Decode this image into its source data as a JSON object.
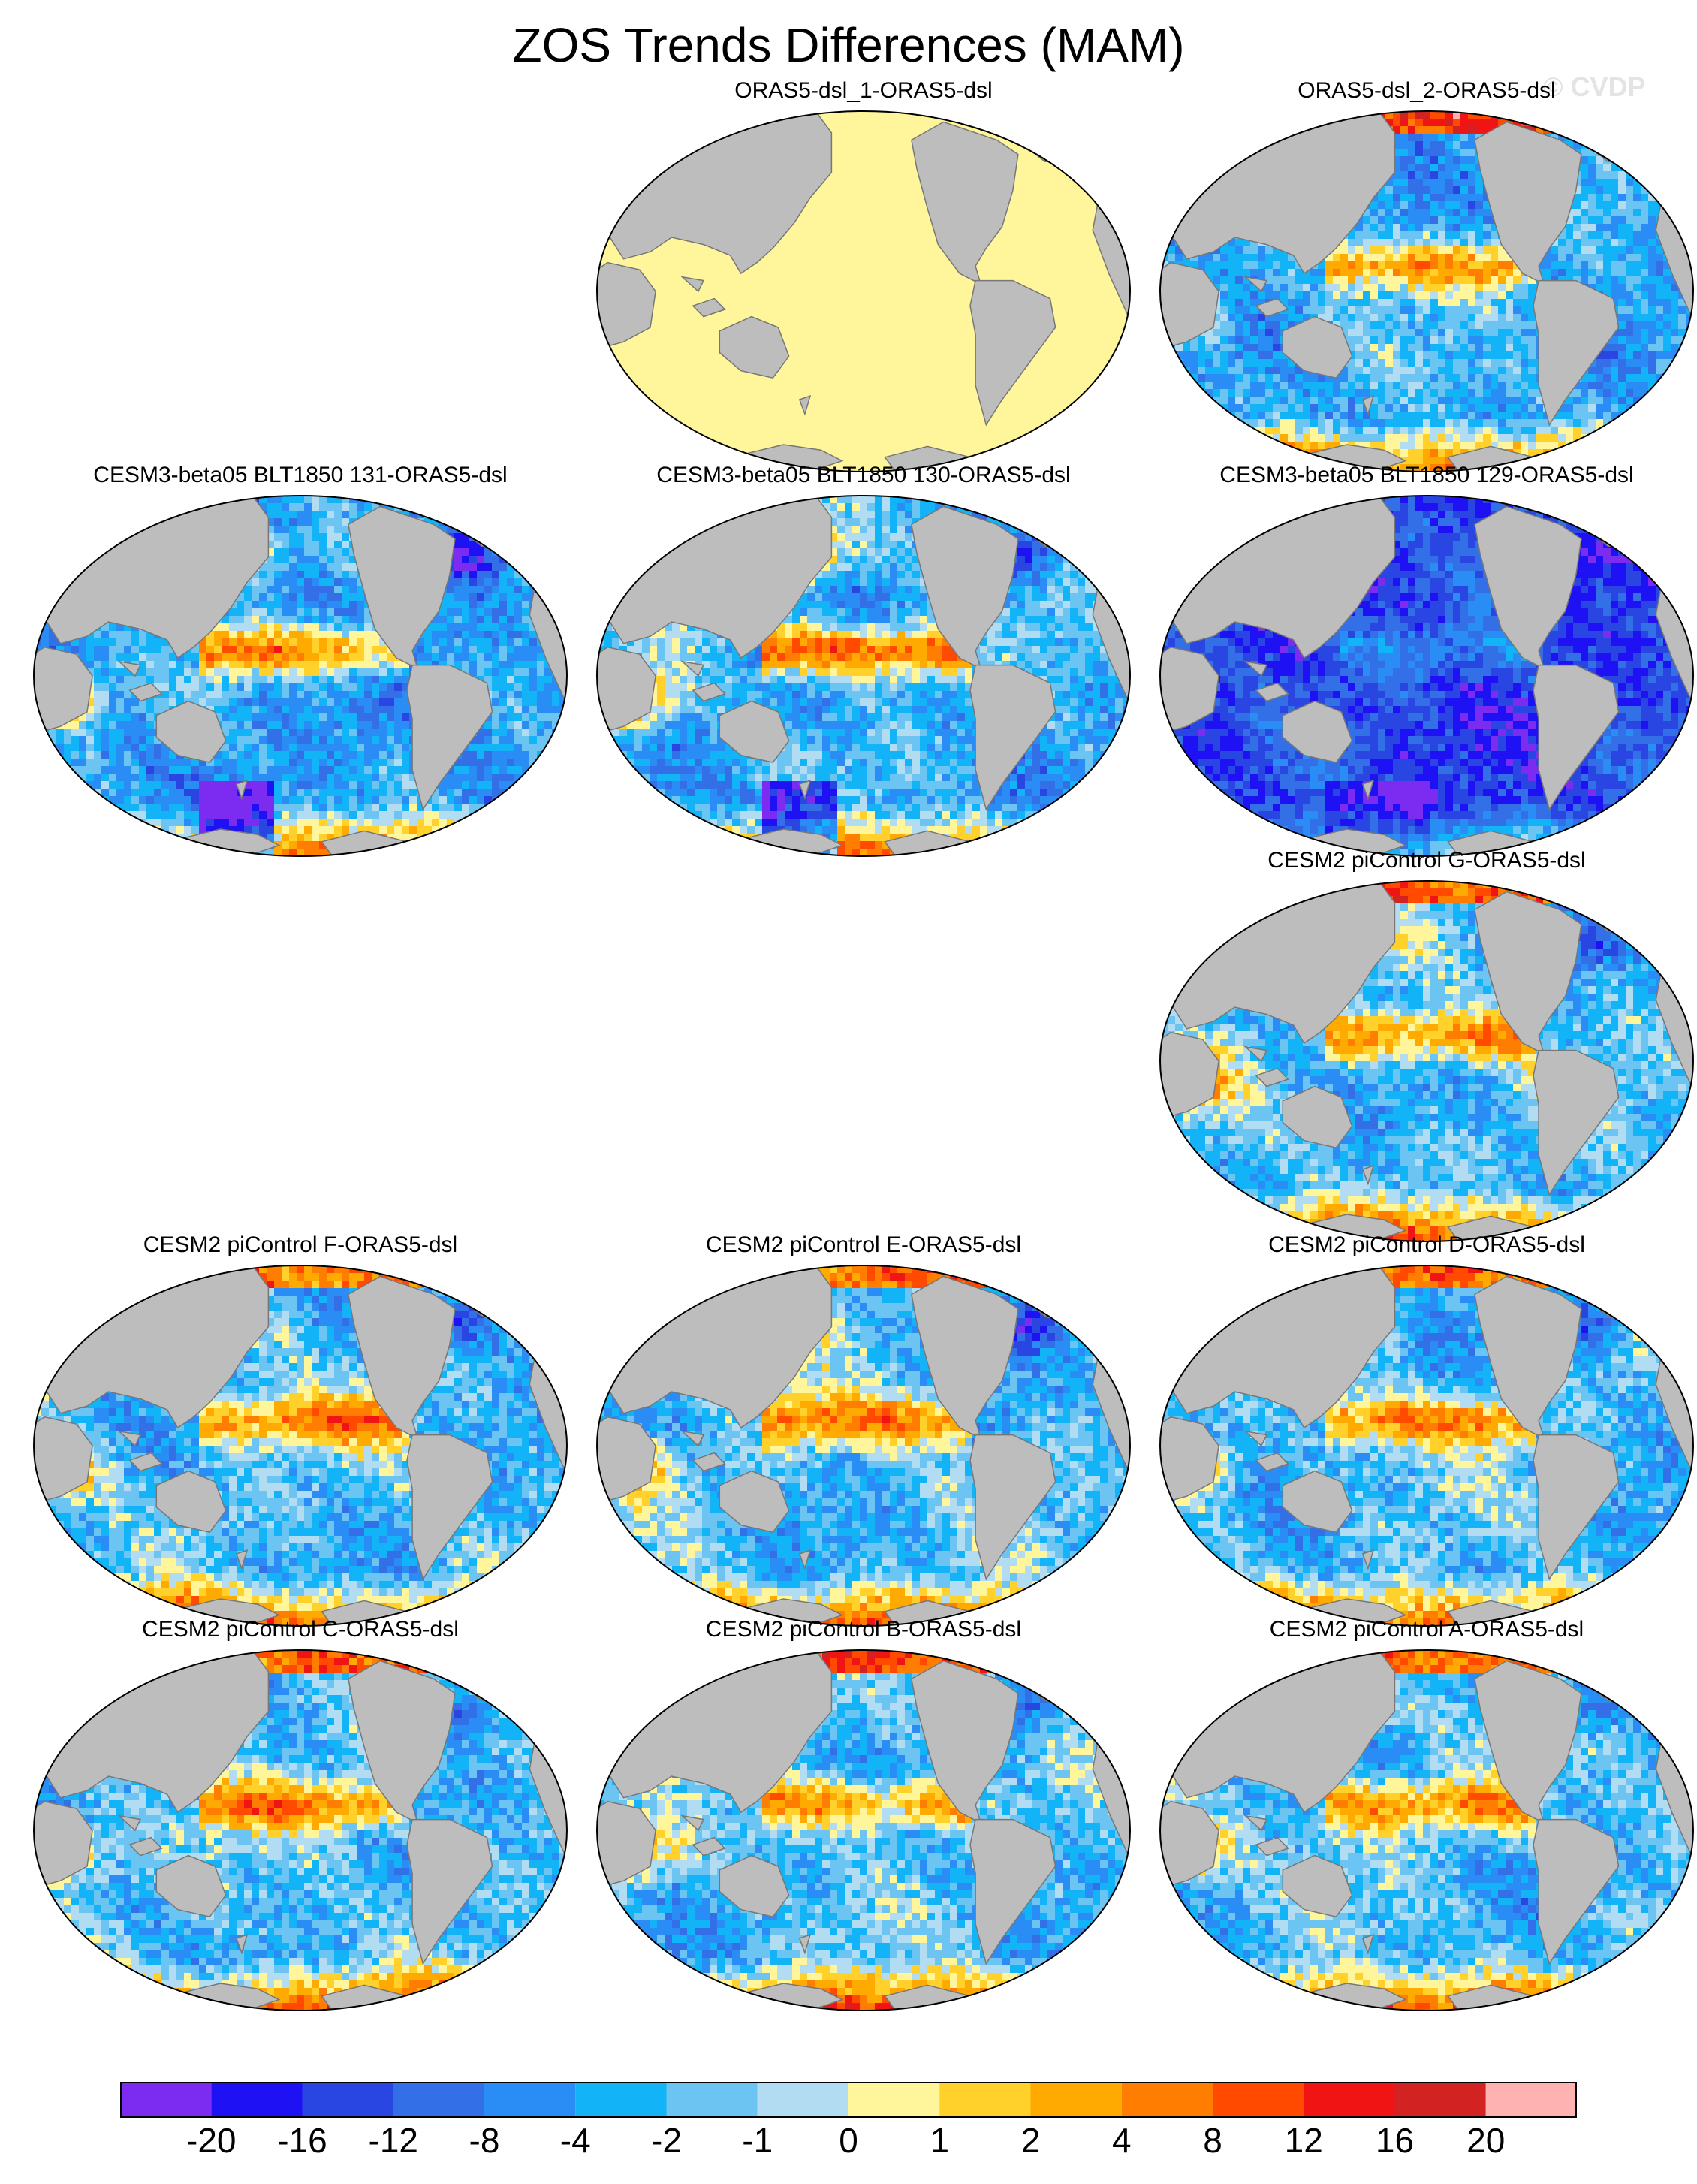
{
  "figure": {
    "title": "ZOS Trends Differences (MAM)",
    "watermark": "© CVDP"
  },
  "colors": {
    "land": "#bdbdbd",
    "coast": "#777777"
  },
  "panels": [
    {
      "title": "ORAS5-dsl_1-ORAS5-dsl",
      "row": 0,
      "col": 1,
      "pattern": "uniform"
    },
    {
      "title": "ORAS5-dsl_2-ORAS5-dsl",
      "row": 0,
      "col": 2,
      "pattern": "obs2"
    },
    {
      "title": "CESM3-beta05 BLT1850 131-ORAS5-dsl",
      "row": 1,
      "col": 0,
      "pattern": "cesm3a"
    },
    {
      "title": "CESM3-beta05 BLT1850 130-ORAS5-dsl",
      "row": 1,
      "col": 1,
      "pattern": "cesm3b"
    },
    {
      "title": "CESM3-beta05 BLT1850 129-ORAS5-dsl",
      "row": 1,
      "col": 2,
      "pattern": "cesm3c"
    },
    {
      "title": "CESM2 piControl G-ORAS5-dsl",
      "row": 2,
      "col": 2,
      "pattern": "cesm2"
    },
    {
      "title": "CESM2 piControl F-ORAS5-dsl",
      "row": 3,
      "col": 0,
      "pattern": "cesm2"
    },
    {
      "title": "CESM2 piControl E-ORAS5-dsl",
      "row": 3,
      "col": 1,
      "pattern": "cesm2"
    },
    {
      "title": "CESM2 piControl D-ORAS5-dsl",
      "row": 3,
      "col": 2,
      "pattern": "cesm2"
    },
    {
      "title": "CESM2 piControl C-ORAS5-dsl",
      "row": 4,
      "col": 0,
      "pattern": "cesm2"
    },
    {
      "title": "CESM2 piControl B-ORAS5-dsl",
      "row": 4,
      "col": 1,
      "pattern": "cesm2"
    },
    {
      "title": "CESM2 piControl A-ORAS5-dsl",
      "row": 4,
      "col": 2,
      "pattern": "cesm2"
    }
  ],
  "colorbar": {
    "colors": [
      "#7b2cf0",
      "#1e12f5",
      "#2946e3",
      "#3370e8",
      "#2a8cf5",
      "#12b4f7",
      "#6cc4f2",
      "#b1dcf2",
      "#fff59a",
      "#ffd12a",
      "#ffaa00",
      "#ff7d00",
      "#ff4a00",
      "#f01414",
      "#d22222",
      "#ffb2b2"
    ],
    "labels": [
      "-20",
      "-16",
      "-12",
      "-8",
      "-4",
      "-2",
      "-1",
      "0",
      "1",
      "2",
      "4",
      "8",
      "12",
      "16",
      "20"
    ]
  }
}
